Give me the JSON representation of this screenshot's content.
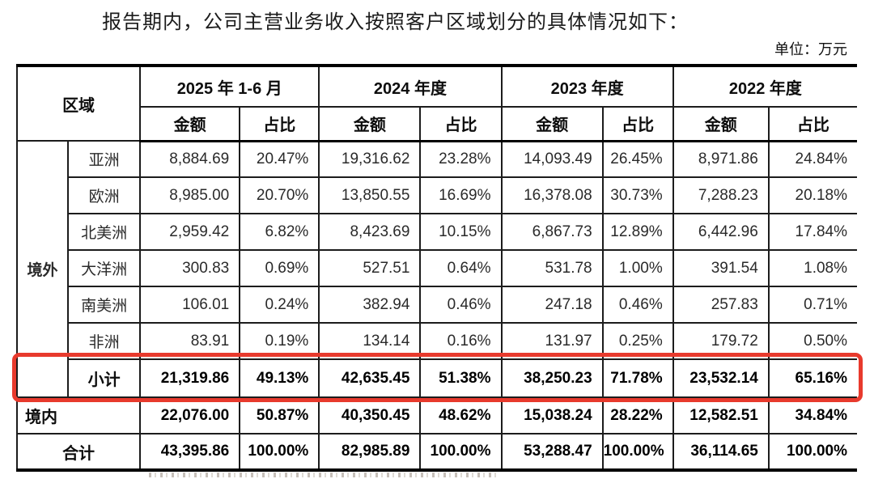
{
  "page": {
    "title": "报告期内，公司主营业务收入按照客户区域划分的具体情况如下：",
    "unit_label": "单位：万元"
  },
  "table": {
    "region_header": "区域",
    "col_groups": [
      {
        "label": "2025 年 1-6 月"
      },
      {
        "label": "2024 年度"
      },
      {
        "label": "2023 年度"
      },
      {
        "label": "2022 年度"
      }
    ],
    "sub_headers": {
      "amount": "金额",
      "ratio": "占比"
    },
    "group_label": "境外",
    "rows": [
      {
        "type": "region",
        "label": "亚洲",
        "bold": false,
        "values": [
          "8,884.69",
          "20.47%",
          "19,316.62",
          "23.28%",
          "14,093.49",
          "26.45%",
          "8,971.86",
          "24.84%"
        ]
      },
      {
        "type": "region",
        "label": "欧洲",
        "bold": false,
        "values": [
          "8,985.00",
          "20.70%",
          "13,850.55",
          "16.69%",
          "16,378.08",
          "30.73%",
          "7,288.23",
          "20.18%"
        ]
      },
      {
        "type": "region",
        "label": "北美洲",
        "bold": false,
        "values": [
          "2,959.42",
          "6.82%",
          "8,423.69",
          "10.15%",
          "6,867.73",
          "12.89%",
          "6,442.96",
          "17.84%"
        ]
      },
      {
        "type": "region",
        "label": "大洋洲",
        "bold": false,
        "values": [
          "300.83",
          "0.69%",
          "527.51",
          "0.64%",
          "531.78",
          "1.00%",
          "391.54",
          "1.08%"
        ]
      },
      {
        "type": "region",
        "label": "南美洲",
        "bold": false,
        "values": [
          "106.01",
          "0.24%",
          "382.94",
          "0.46%",
          "247.18",
          "0.46%",
          "257.83",
          "0.71%"
        ]
      },
      {
        "type": "region",
        "label": "非洲",
        "bold": false,
        "values": [
          "83.91",
          "0.19%",
          "134.14",
          "0.16%",
          "131.97",
          "0.25%",
          "179.72",
          "0.50%"
        ]
      },
      {
        "type": "subtotal",
        "label": "小计",
        "bold": true,
        "highlighted": true,
        "values": [
          "21,319.86",
          "49.13%",
          "42,635.45",
          "51.38%",
          "38,250.23",
          "71.78%",
          "23,532.14",
          "65.16%"
        ]
      },
      {
        "type": "domestic",
        "label": "境内",
        "bold": true,
        "values": [
          "22,076.00",
          "50.87%",
          "40,350.45",
          "48.62%",
          "15,038.24",
          "28.22%",
          "12,582.51",
          "34.84%"
        ]
      },
      {
        "type": "total",
        "label": "合计",
        "bold": true,
        "values": [
          "43,395.86",
          "100.00%",
          "82,985.89",
          "100.00%",
          "53,288.47",
          "100.00%",
          "36,114.65",
          "100.00%"
        ]
      }
    ],
    "highlight_color": "#e83a2d"
  }
}
